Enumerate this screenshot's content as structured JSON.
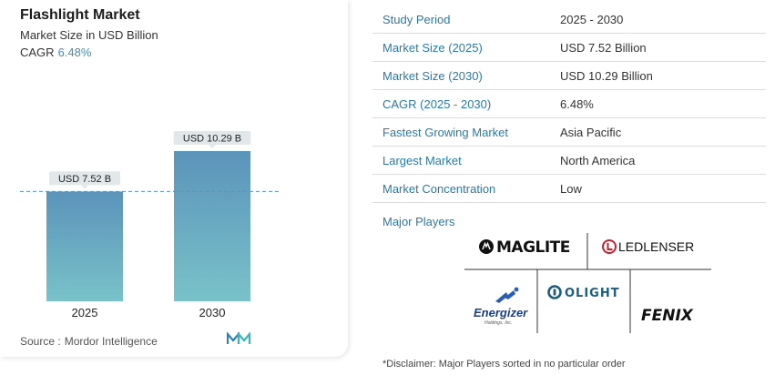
{
  "header": {
    "title": "Flashlight Market",
    "subtitle": "Market Size in USD Billion",
    "cagr_label": "CAGR",
    "cagr_value": "6.48%"
  },
  "chart_data": {
    "type": "bar",
    "title": "Flashlight Market",
    "subtitle": "Market Size in USD Billion",
    "categories": [
      "2025",
      "2030"
    ],
    "values": [
      7.52,
      10.29
    ],
    "data_labels": [
      "USD 7.52 B",
      "USD 10.29 B"
    ],
    "ylim": [
      0,
      11.6
    ],
    "reference_line_value": 7.52,
    "grid": false,
    "legend": "none",
    "bar_colors": {
      "top": "#5b93ba",
      "bottom": "#79c2c9"
    }
  },
  "source": {
    "label": "Source :",
    "name": "Mordor Intelligence"
  },
  "table": {
    "rows": [
      {
        "label": "Study Period",
        "value": "2025 - 2030"
      },
      {
        "label": "Market Size (2025)",
        "value": "USD 7.52 Billion"
      },
      {
        "label": "Market Size (2030)",
        "value": "USD 10.29 Billion"
      },
      {
        "label": "CAGR (2025 - 2030)",
        "value": "6.48%"
      },
      {
        "label": "Fastest Growing Market",
        "value": "Asia Pacific"
      },
      {
        "label": "Largest Market",
        "value": "North America"
      },
      {
        "label": "Market Concentration",
        "value": "Low"
      }
    ]
  },
  "players": {
    "heading": "Major Players",
    "logos": [
      "MAGLITE",
      "LEDLENSER",
      "Energizer",
      "OLIGHT",
      "FENIX"
    ],
    "energizer_tagline": "Holdings, Inc."
  },
  "disclaimer": "*Disclaimer: Major Players sorted in no particular order",
  "colors": {
    "accent_blue": "#2a7aa8",
    "cagr_blue": "#3d8fb5",
    "label_bg": "#e2e8ea"
  }
}
